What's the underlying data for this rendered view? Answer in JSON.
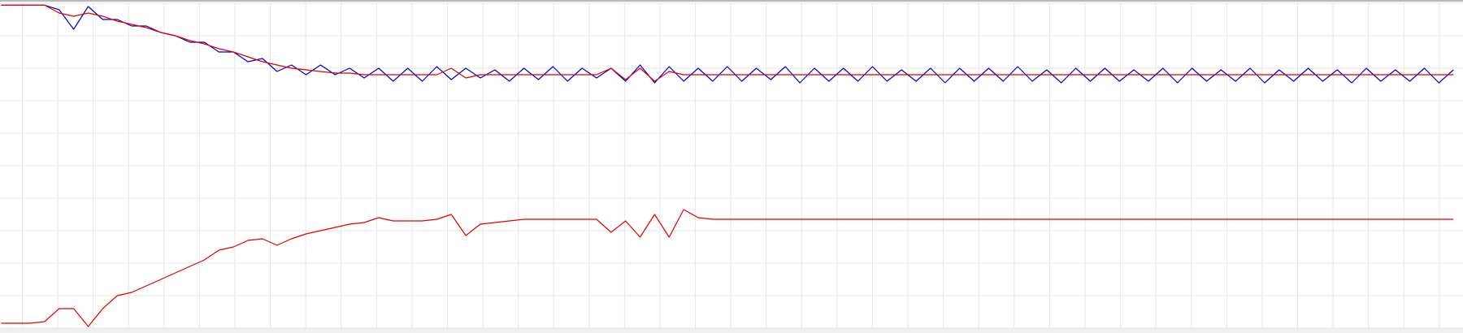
{
  "chart_data": {
    "type": "line",
    "x": [
      0.4,
      0.81,
      1.22,
      1.63,
      2.04,
      2.45,
      2.86,
      3.27,
      3.68,
      4.09,
      4.5,
      4.91,
      5.32,
      5.73,
      6.14,
      6.55,
      6.96,
      7.37,
      7.78,
      8.19,
      8.6,
      9.01,
      9.42,
      9.83,
      10.24,
      10.65,
      11.06,
      11.47,
      11.88,
      12.29,
      12.7,
      13.11,
      13.52,
      13.93,
      14.34,
      14.75,
      15.16,
      15.57,
      15.98,
      16.39,
      16.8,
      17.21,
      17.62,
      18.03,
      18.44,
      18.85,
      19.26,
      19.67,
      20.08,
      20.49,
      20.9,
      21.31,
      21.72,
      22.13,
      22.54,
      22.95,
      23.36,
      23.77,
      24.18,
      24.59,
      25,
      25.41,
      25.82,
      26.23,
      26.64,
      27.05,
      27.46,
      27.87,
      28.28,
      28.69,
      29.1,
      29.51,
      29.92,
      30.33,
      30.74,
      31.15,
      31.56,
      31.97,
      32.38,
      32.79,
      33.2,
      33.61,
      34.02,
      34.43,
      34.84,
      35.25,
      35.66,
      36.07,
      36.48,
      36.89,
      37.3,
      37.71,
      38.12,
      38.53,
      38.94,
      39.35,
      39.76,
      40.17,
      40.58,
      40.99,
      41.4
    ],
    "series": [
      {
        "color": "#0000cc",
        "values": [
          9.94,
          9.94,
          9.94,
          9.94,
          9.8,
          9.2,
          9.9,
          9.5,
          9.5,
          9.3,
          9.3,
          9.1,
          9.0,
          8.8,
          8.8,
          8.5,
          8.5,
          8.2,
          8.3,
          7.9,
          8.1,
          7.8,
          8.1,
          7.8,
          8.0,
          7.7,
          8.0,
          7.6,
          8.0,
          7.6,
          8.05,
          7.65,
          8.0,
          7.7,
          7.95,
          7.6,
          8.0,
          7.65,
          8.05,
          7.6,
          8.0,
          7.7,
          8.0,
          7.6,
          8.1,
          7.55,
          8.05,
          7.6,
          8.0,
          7.6,
          8.05,
          7.6,
          8.0,
          7.65,
          8.05,
          7.55,
          8.0,
          7.6,
          8.0,
          7.6,
          8.05,
          7.6,
          7.95,
          7.6,
          8.0,
          7.55,
          8.0,
          7.6,
          8.0,
          7.6,
          8.05,
          7.6,
          7.95,
          7.55,
          8.0,
          7.6,
          8.0,
          7.6,
          7.95,
          7.6,
          8.0,
          7.55,
          8.0,
          7.6,
          7.95,
          7.6,
          8.0,
          7.55,
          7.95,
          7.6,
          8.0,
          7.6,
          7.95,
          7.55,
          8.0,
          7.6,
          7.95,
          7.6,
          8.0,
          7.55,
          7.95
        ]
      },
      {
        "color": "#e00000",
        "values": [
          9.94,
          9.94,
          9.94,
          9.94,
          9.7,
          9.6,
          9.7,
          9.6,
          9.45,
          9.35,
          9.25,
          9.1,
          9.0,
          8.85,
          8.75,
          8.6,
          8.5,
          8.35,
          8.2,
          8.1,
          8.0,
          7.95,
          7.9,
          7.85,
          7.85,
          7.8,
          7.8,
          7.8,
          7.8,
          7.8,
          7.8,
          8.0,
          7.7,
          7.8,
          7.8,
          7.8,
          7.8,
          7.8,
          7.8,
          7.8,
          7.8,
          7.8,
          8.0,
          7.65,
          8.0,
          7.6,
          7.9,
          7.8,
          7.8,
          7.8,
          7.8,
          7.8,
          7.8,
          7.8,
          7.8,
          7.8,
          7.8,
          7.8,
          7.8,
          7.8,
          7.8,
          7.8,
          7.8,
          7.8,
          7.8,
          7.8,
          7.8,
          7.8,
          7.8,
          7.8,
          7.8,
          7.8,
          7.8,
          7.8,
          7.8,
          7.8,
          7.8,
          7.8,
          7.8,
          7.8,
          7.8,
          7.8,
          7.8,
          7.8,
          7.8,
          7.8,
          7.8,
          7.8,
          7.8,
          7.8,
          7.8,
          7.8,
          7.8,
          7.8,
          7.8,
          7.8,
          7.8,
          7.8,
          7.8,
          7.8,
          7.8
        ]
      },
      {
        "color": "#e00000",
        "values": [
          0.15,
          0.15,
          0.15,
          0.2,
          0.6,
          0.6,
          0.05,
          0.6,
          1.0,
          1.1,
          1.3,
          1.5,
          1.7,
          1.9,
          2.1,
          2.4,
          2.5,
          2.7,
          2.75,
          2.55,
          2.75,
          2.9,
          3.0,
          3.1,
          3.2,
          3.25,
          3.4,
          3.3,
          3.3,
          3.3,
          3.35,
          3.5,
          2.85,
          3.2,
          3.25,
          3.3,
          3.35,
          3.35,
          3.35,
          3.35,
          3.35,
          3.35,
          2.95,
          3.3,
          2.8,
          3.5,
          2.8,
          3.65,
          3.4,
          3.35,
          3.35,
          3.35,
          3.35,
          3.35,
          3.35,
          3.35,
          3.35,
          3.35,
          3.35,
          3.35,
          3.35,
          3.35,
          3.35,
          3.35,
          3.35,
          3.35,
          3.35,
          3.35,
          3.35,
          3.35,
          3.35,
          3.35,
          3.35,
          3.35,
          3.35,
          3.35,
          3.35,
          3.35,
          3.35,
          3.35,
          3.35,
          3.35,
          3.35,
          3.35,
          3.35,
          3.35,
          3.35,
          3.35,
          3.35,
          3.35,
          3.35,
          3.35,
          3.35,
          3.35,
          3.35,
          3.35,
          3.35,
          3.35,
          3.35,
          3.35,
          3.35
        ]
      }
    ],
    "xlim": [
      0.37,
      41.67
    ],
    "xticks": [
      1,
      2,
      3,
      4,
      5,
      6,
      7,
      8,
      9,
      10,
      11,
      12,
      13,
      14,
      15,
      16,
      17,
      18,
      19,
      20,
      21,
      22,
      23,
      24,
      25,
      26,
      27,
      28,
      29,
      30,
      31,
      32,
      33,
      34,
      35,
      36,
      37,
      38,
      39,
      40,
      41
    ],
    "ylim": [
      0,
      10
    ],
    "yticks": [
      0,
      1,
      2,
      3,
      4,
      5,
      6,
      7,
      8,
      9,
      10
    ],
    "grid": true
  }
}
